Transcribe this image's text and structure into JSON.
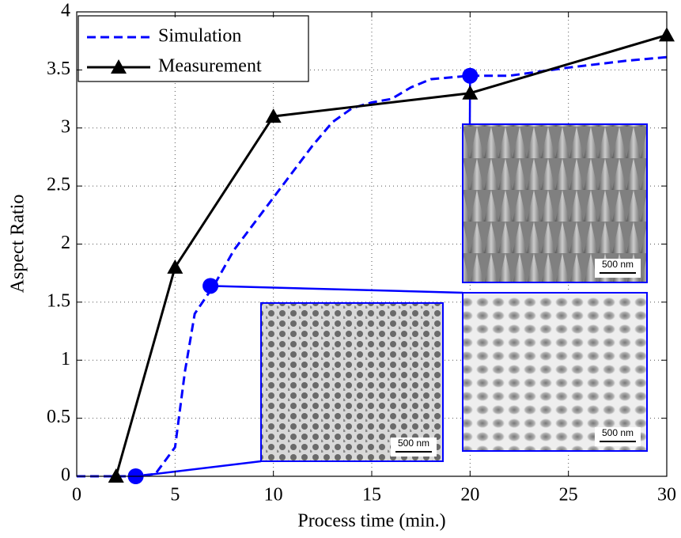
{
  "chart_data": {
    "type": "line",
    "xlabel": "Process time (min.)",
    "ylabel": "Aspect Ratio",
    "xlim": [
      0,
      30
    ],
    "xticks": [
      0,
      5,
      10,
      15,
      20,
      25,
      30
    ],
    "ylim": [
      0,
      4
    ],
    "yticks": [
      0,
      0.5,
      1,
      1.5,
      2,
      2.5,
      3,
      3.5,
      4
    ],
    "grid": true,
    "legend_position": "upper left",
    "series": [
      {
        "name": "Simulation",
        "color": "#0000ff",
        "linestyle": "dashed",
        "marker": "none",
        "x": [
          0,
          2,
          3,
          4,
          5,
          5.5,
          6,
          7,
          8,
          10,
          12,
          13,
          14,
          15,
          16,
          17,
          18,
          20,
          22,
          25,
          28,
          30
        ],
        "values": [
          0,
          0,
          0,
          0.02,
          0.25,
          0.9,
          1.4,
          1.65,
          1.95,
          2.4,
          2.85,
          3.05,
          3.17,
          3.22,
          3.25,
          3.35,
          3.42,
          3.45,
          3.45,
          3.52,
          3.58,
          3.61
        ]
      },
      {
        "name": "Measurement",
        "color": "#000000",
        "linestyle": "solid",
        "marker": "triangle",
        "x": [
          2,
          5,
          10,
          20,
          30
        ],
        "values": [
          0,
          1.8,
          3.1,
          3.3,
          3.8
        ]
      }
    ],
    "highlights": {
      "color": "#0000ff",
      "x": [
        3,
        6.8,
        20
      ],
      "values": [
        0,
        1.64,
        3.45
      ]
    },
    "insets": [
      {
        "scale_label": "500 nm"
      },
      {
        "scale_label": "500 nm"
      },
      {
        "scale_label": "500 nm"
      }
    ]
  }
}
